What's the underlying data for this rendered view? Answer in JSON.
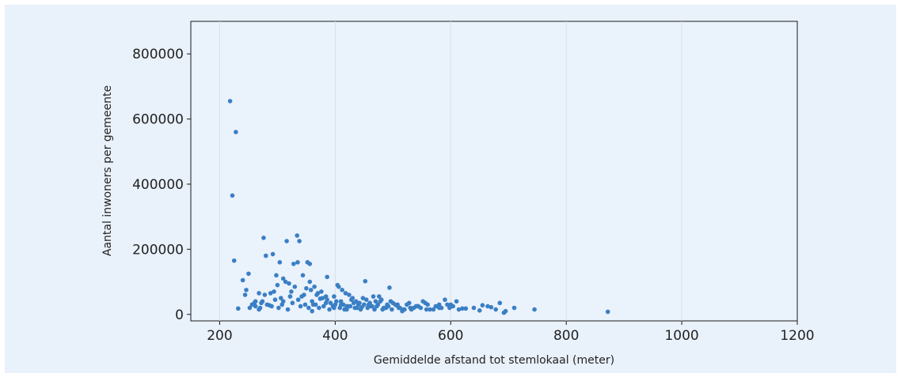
{
  "chart_data": {
    "type": "scatter",
    "title": "",
    "xlabel": "Gemiddelde afstand tot stemlokaal (meter)",
    "ylabel": "Aantal inwoners per gemeente",
    "xlim": [
      150,
      1200
    ],
    "ylim": [
      -20000,
      900000
    ],
    "x_ticks": [
      200,
      400,
      600,
      800,
      1000,
      1200
    ],
    "y_ticks": [
      0,
      200000,
      400000,
      600000,
      800000
    ],
    "x_tick_labels": [
      "200",
      "400",
      "600",
      "800",
      "1000",
      "1200"
    ],
    "y_tick_labels": [
      "0",
      "200000",
      "400000",
      "600000",
      "800000"
    ],
    "grid": "vertical",
    "colors": {
      "point": "#3a7fc4",
      "plot_bg": "#e9f1fb",
      "grid": "#d8e0ea"
    },
    "series": [
      {
        "x": [
          218,
          225,
          228,
          222,
          232,
          240,
          246,
          250,
          256,
          262,
          268,
          272,
          276,
          280,
          286,
          292,
          298,
          304,
          310,
          316,
          322,
          328,
          334,
          338,
          344,
          350,
          356,
          362,
          368,
          374,
          380,
          386,
          392,
          398,
          404,
          410,
          416,
          422,
          428,
          434,
          440,
          446,
          452,
          458,
          464,
          470,
          476,
          482,
          488,
          494,
          500,
          506,
          512,
          520,
          528,
          536,
          544,
          552,
          560,
          570,
          580,
          590,
          600,
          610,
          620,
          640,
          655,
          670,
          685,
          695,
          710,
          745,
          872,
          274,
          288,
          300,
          314,
          330,
          335,
          352,
          356,
          244,
          252,
          260,
          268,
          282,
          290,
          296,
          302,
          308,
          318,
          324,
          340,
          346,
          360,
          366,
          372,
          378,
          384,
          390,
          396,
          402,
          408,
          414,
          420,
          426,
          432,
          438,
          444,
          450,
          456,
          462,
          468,
          474,
          480,
          486,
          492,
          498,
          504,
          510,
          516,
          524,
          532,
          540,
          548,
          556,
          564,
          574,
          584,
          594,
          604,
          614,
          626,
          650,
          664,
          678,
          692,
          406,
          412,
          386,
          398,
          418,
          430,
          442,
          454,
          466,
          478,
          490,
          310,
          320,
          342,
          358,
          364,
          370,
          376,
          262,
          270,
          278,
          294,
          306,
          326,
          336,
          348,
          354,
          360,
          384,
          400,
          410,
          420,
          424,
          436,
          448,
          460,
          472,
          484,
          496,
          508,
          518,
          530,
          542,
          558,
          580,
          598
        ],
        "y": [
          655000,
          165000,
          560000,
          365000,
          18000,
          105000,
          75000,
          125000,
          30000,
          25000,
          65000,
          35000,
          235000,
          180000,
          28000,
          185000,
          120000,
          160000,
          40000,
          225000,
          55000,
          155000,
          242000,
          225000,
          120000,
          80000,
          100000,
          30000,
          60000,
          48000,
          25000,
          115000,
          35000,
          20000,
          90000,
          30000,
          15000,
          25000,
          45000,
          20000,
          30000,
          22000,
          102000,
          30000,
          25000,
          40000,
          55000,
          15000,
          20000,
          82000,
          35000,
          28000,
          20000,
          15000,
          35000,
          20000,
          25000,
          40000,
          30000,
          15000,
          20000,
          45000,
          30000,
          40000,
          18000,
          20000,
          28000,
          22000,
          35000,
          10000,
          20000,
          15000,
          8000,
          40000,
          65000,
          90000,
          100000,
          85000,
          160000,
          160000,
          155000,
          60000,
          20000,
          35000,
          15000,
          30000,
          25000,
          45000,
          20000,
          30000,
          15000,
          70000,
          25000,
          60000,
          40000,
          30000,
          20000,
          50000,
          35000,
          15000,
          25000,
          40000,
          20000,
          30000,
          15000,
          25000,
          35000,
          20000,
          15000,
          30000,
          20000,
          25000,
          15000,
          30000,
          45000,
          20000,
          25000,
          15000,
          30000,
          20000,
          10000,
          30000,
          15000,
          25000,
          20000,
          35000,
          15000,
          25000,
          20000,
          30000,
          25000,
          15000,
          18000,
          12000,
          25000,
          15000,
          5000,
          85000,
          75000,
          45000,
          55000,
          65000,
          50000,
          35000,
          45000,
          55000,
          40000,
          30000,
          110000,
          95000,
          55000,
          75000,
          85000,
          65000,
          70000,
          40000,
          20000,
          60000,
          70000,
          50000,
          35000,
          45000,
          30000,
          20000,
          10000,
          55000,
          30000,
          40000,
          25000,
          60000,
          40000,
          50000,
          35000,
          25000,
          20000,
          40000,
          30000,
          15000,
          20000,
          25000,
          15000,
          30000,
          20000
        ]
      }
    ]
  }
}
